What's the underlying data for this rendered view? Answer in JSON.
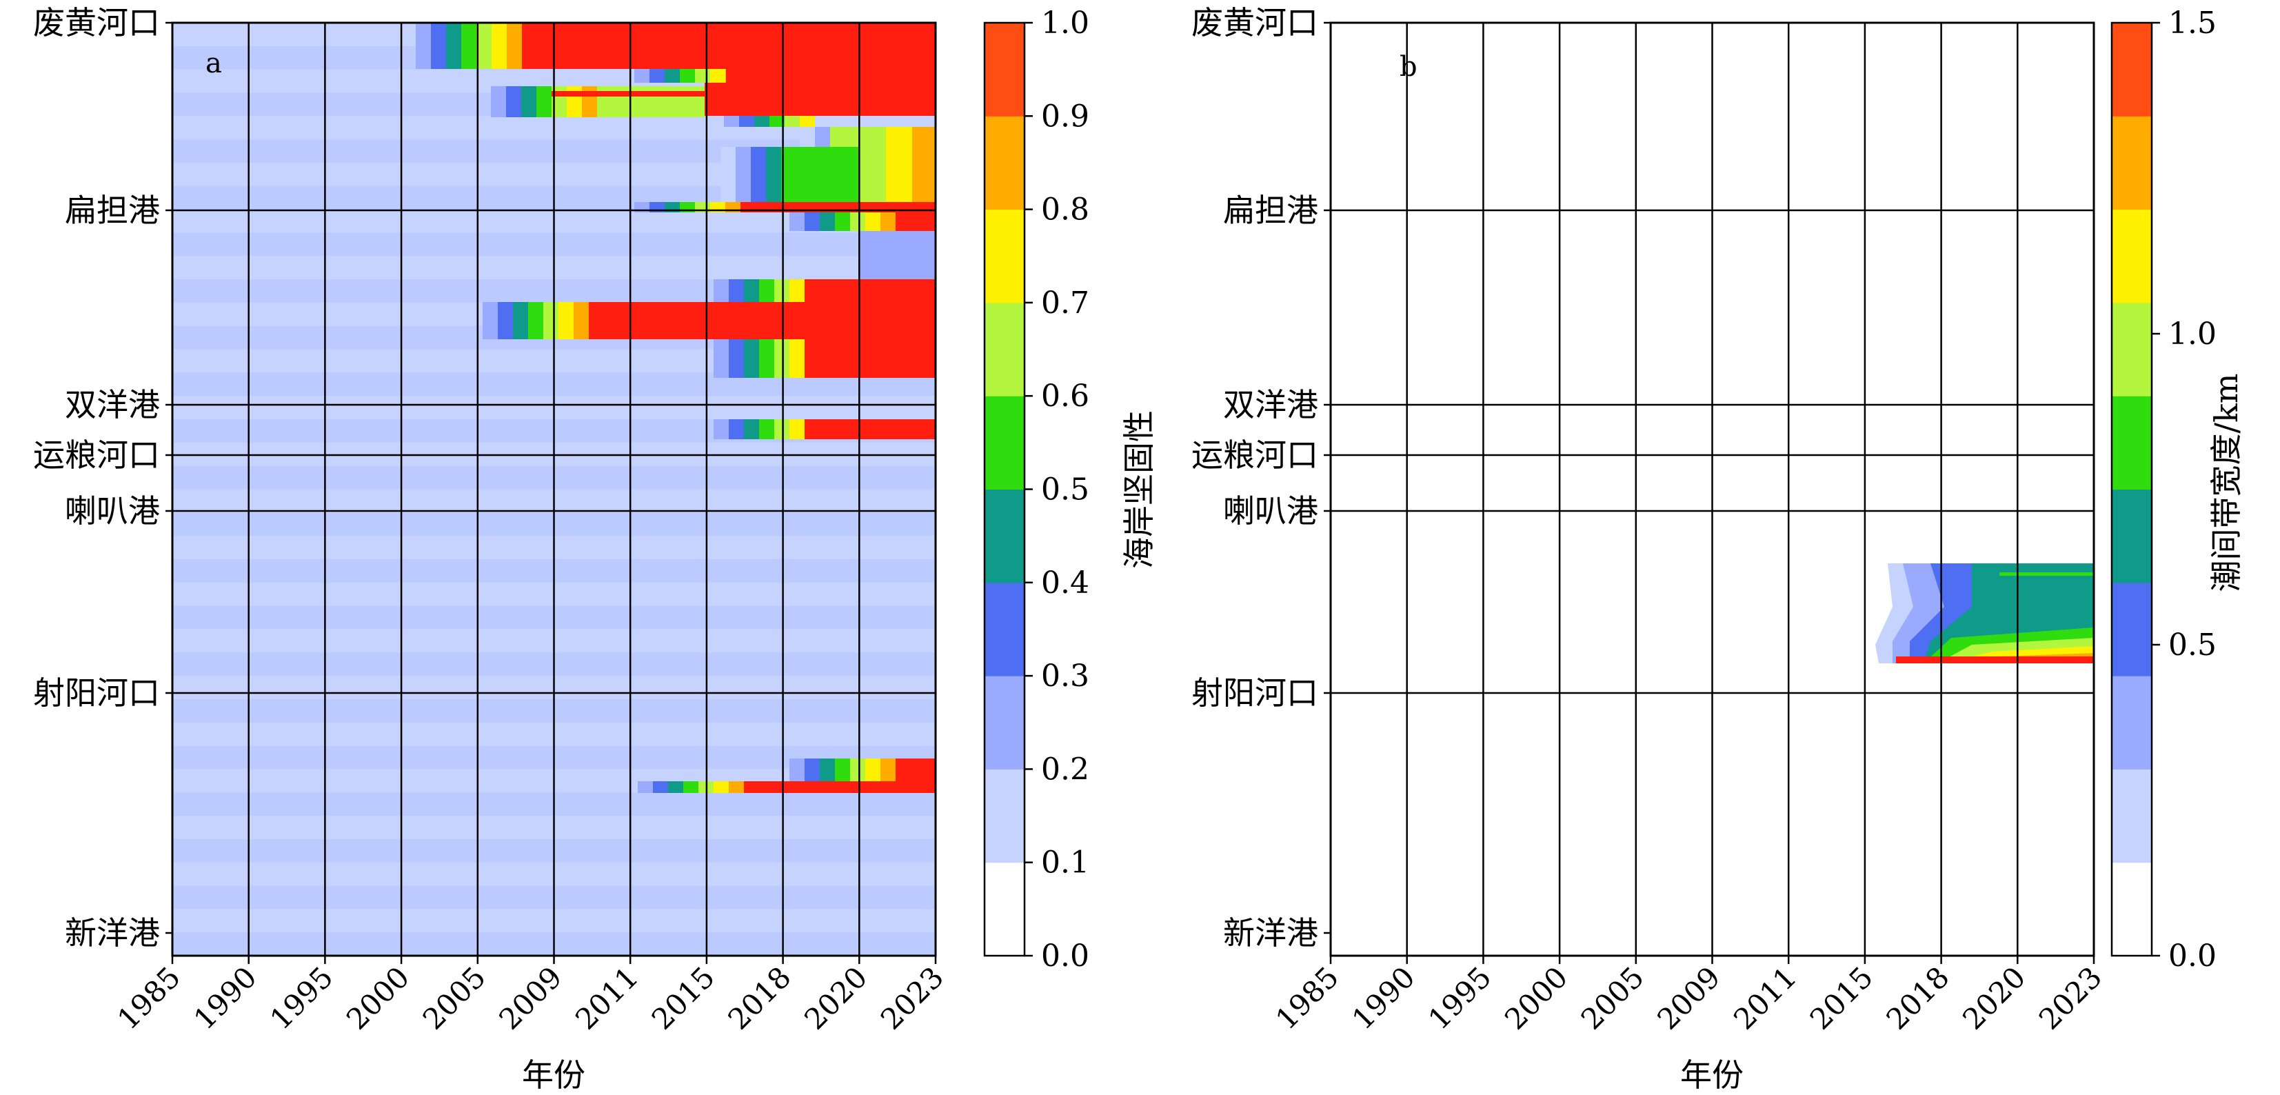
{
  "chart_data": [
    {
      "type": "heatmap",
      "panel_label": "a",
      "xlabel": "年份",
      "x_ticks": [
        "1985",
        "1990",
        "1995",
        "2000",
        "2005",
        "2009",
        "2011",
        "2015",
        "2018",
        "2020",
        "2023"
      ],
      "y_ticks": [
        "废黄河口",
        "扁担港",
        "双洋港",
        "运粮河口",
        "喇叭港",
        "射阳河口",
        "新洋港"
      ],
      "colorbar": {
        "label": "海岸坚固性",
        "ticks": [
          "0.0",
          "0.1",
          "0.2",
          "0.3",
          "0.4",
          "0.5",
          "0.6",
          "0.7",
          "0.8",
          "0.9",
          "1.0"
        ],
        "range": [
          0,
          1
        ]
      },
      "grid": true,
      "background_value": 0.15,
      "high_value_regions": [
        {
          "x_range": [
            "2005",
            "2023"
          ],
          "y_range_between": [
            "废黄河口",
            "扁担港"
          ],
          "value": 1.0
        },
        {
          "x_range": [
            "2015",
            "2023"
          ],
          "y_range_between": [
            "废黄河口",
            "扁担港"
          ],
          "value": 1.0
        },
        {
          "x_range": [
            "2018",
            "2023"
          ],
          "y_range_between": [
            "废黄河口",
            "扁担港"
          ],
          "value": 0.65
        },
        {
          "x_range": [
            "2009",
            "2023"
          ],
          "y_range_between": [
            "扁担港",
            "双洋港"
          ],
          "value": 1.0
        },
        {
          "x_range": [
            "2018",
            "2023"
          ],
          "y_range_between": [
            "扁担港",
            "双洋港"
          ],
          "value": 1.0
        },
        {
          "x_range": [
            "2018",
            "2023"
          ],
          "y_range_between": [
            "双洋港",
            "运粮河口"
          ],
          "value": 1.0
        },
        {
          "x_range": [
            "2015",
            "2023"
          ],
          "y_range_between": [
            "射阳河口",
            "新洋港"
          ],
          "value": 1.0
        }
      ]
    },
    {
      "type": "heatmap",
      "panel_label": "b",
      "xlabel": "年份",
      "x_ticks": [
        "1985",
        "1990",
        "1995",
        "2000",
        "2005",
        "2009",
        "2011",
        "2015",
        "2018",
        "2020",
        "2023"
      ],
      "y_ticks": [
        "废黄河口",
        "扁担港",
        "双洋港",
        "运粮河口",
        "喇叭港",
        "射阳河口",
        "新洋港"
      ],
      "colorbar": {
        "label": "潮间带宽度/km",
        "ticks": [
          "0.0",
          "0.5",
          "1.0",
          "1.5"
        ],
        "range": [
          0,
          1.5
        ]
      },
      "grid": true,
      "background_value": 0,
      "high_value_regions": [
        {
          "x_range": [
            "2015",
            "2023"
          ],
          "y_range_between": [
            "喇叭港",
            "射阳河口"
          ],
          "value": 1.5
        }
      ]
    }
  ]
}
